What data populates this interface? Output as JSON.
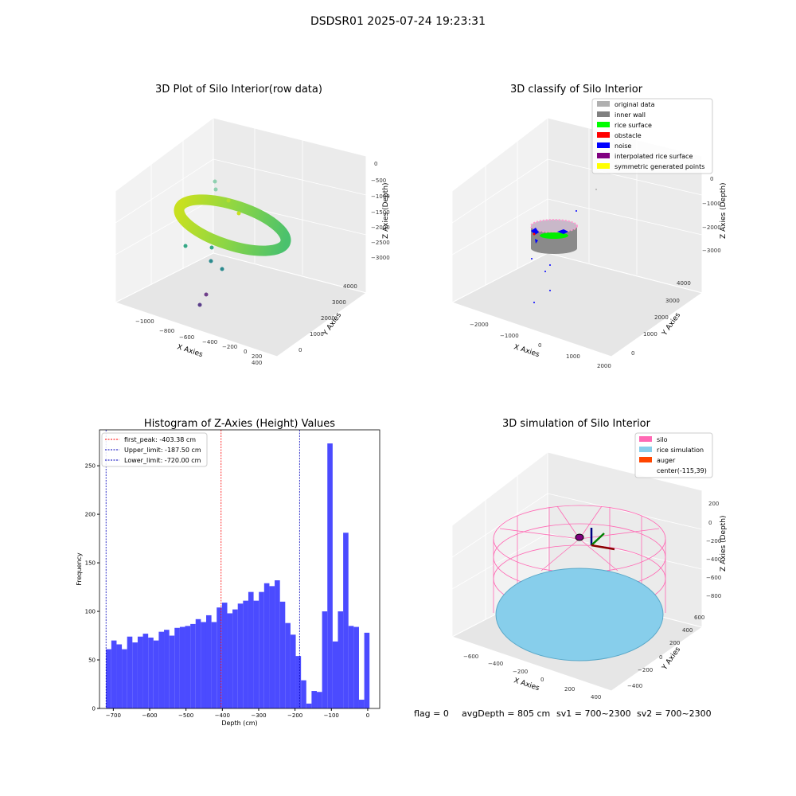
{
  "suptitle": "DSDSR01 2025-07-24 19:23:31",
  "footer": {
    "flag": "flag = 0",
    "avgdepth": "avgDepth = 805 cm",
    "sv1": "sv1 = 700~2300",
    "sv2": "sv2 = 700~2300"
  },
  "chart_data": [
    {
      "type": "scatter",
      "title": "3D Plot of Silo Interior(row data)",
      "xlabel": "X Axies",
      "ylabel": "Y Axies",
      "zlabel": "Z Axies (Depth)",
      "xticks": [
        "−1000",
        "−800",
        "−600",
        "−400",
        "−200",
        "0",
        "200",
        "400"
      ],
      "yticks": [
        "0",
        "1000",
        "2000",
        "3000",
        "4000"
      ],
      "zticks": [
        "0",
        "−500",
        "−1000",
        "−1500",
        "−2000",
        "−2500",
        "−3000"
      ],
      "description_series": "ring of points colored by depth (viridis), near z≈-1800 with sparse outliers below"
    },
    {
      "type": "scatter",
      "title": "3D classify of Silo Interior",
      "xlabel": "X Axies",
      "ylabel": "Y Axies",
      "zlabel": "Z Axies (Depth)",
      "xticks": [
        "−2000",
        "−1000",
        "0",
        "1000",
        "2000"
      ],
      "yticks": [
        "0",
        "1000",
        "2000",
        "3000",
        "4000"
      ],
      "zticks": [
        "0",
        "−1000",
        "−2000",
        "−3000"
      ],
      "legend": [
        {
          "label": "original data",
          "color": "#b0b0b0"
        },
        {
          "label": "inner wall",
          "color": "#808080"
        },
        {
          "label": "rice surface",
          "color": "#00ff00"
        },
        {
          "label": "obstacle",
          "color": "#ff0000"
        },
        {
          "label": "noise",
          "color": "#0000ff"
        },
        {
          "label": "interpolated rice surface",
          "color": "#800080"
        },
        {
          "label": "symmetric generated points",
          "color": "#ffff00"
        }
      ]
    },
    {
      "type": "bar",
      "title": "Histogram of Z-Axies (Height) Values",
      "xlabel": "Depth (cm)",
      "ylabel": "Frequency",
      "xlim": [
        -738,
        33
      ],
      "ylim": [
        0,
        287
      ],
      "xticks": [
        -700,
        -600,
        -500,
        -400,
        -300,
        -200,
        -100,
        0
      ],
      "yticks": [
        0,
        50,
        100,
        150,
        200,
        250
      ],
      "bin_start": -720,
      "bin_width": 14.5,
      "values": [
        61,
        70,
        66,
        61,
        74,
        68,
        74,
        77,
        73,
        70,
        79,
        81,
        75,
        83,
        84,
        85,
        87,
        92,
        89,
        96,
        89,
        104,
        109,
        98,
        102,
        108,
        111,
        120,
        111,
        120,
        129,
        126,
        132,
        110,
        88,
        76,
        54,
        29,
        5,
        18,
        17,
        100,
        273,
        69,
        100,
        181,
        85,
        84,
        9,
        78
      ],
      "bar_color": "#4b4bff",
      "vlines": [
        {
          "label": "first_peak: -403.38 cm",
          "x": -403.38,
          "color": "#ff0000"
        },
        {
          "label": "Upper_limit: -187.50 cm",
          "x": -187.5,
          "color": "#0000bb"
        },
        {
          "label": "Lower_limit: -720.00 cm",
          "x": -720.0,
          "color": "#0000bb"
        }
      ]
    },
    {
      "type": "scatter",
      "title": "3D simulation of Silo Interior",
      "xlabel": "X Axies",
      "ylabel": "Y Axies",
      "zlabel": "Z Axies (Depth)",
      "xticks": [
        "−600",
        "−400",
        "−200",
        "0",
        "200",
        "400"
      ],
      "yticks": [
        "−400",
        "−200",
        "0",
        "200",
        "400",
        "600"
      ],
      "zticks": [
        "200",
        "0",
        "−200",
        "−400",
        "−600",
        "−800"
      ],
      "legend": [
        {
          "label": "silo",
          "color": "#ff69b4"
        },
        {
          "label": "rice simulation",
          "color": "#87ceeb"
        },
        {
          "label": "auger",
          "color": "#ff4500"
        },
        {
          "label": "center(-115,39)",
          "color": ""
        }
      ]
    }
  ]
}
